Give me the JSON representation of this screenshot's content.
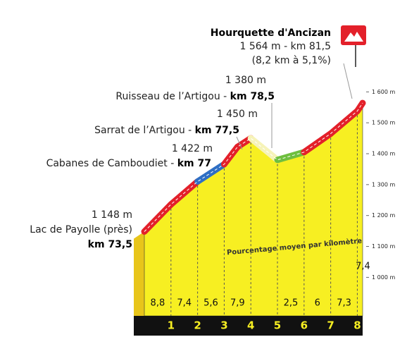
{
  "chart_data": {
    "type": "profile",
    "summit": {
      "name": "Hourquette d'Ancizan",
      "details": "1 564 m - km 81,5",
      "climb": "(8,2 km à 5,1%)"
    },
    "waypoints": [
      {
        "altitude": "1 380 m",
        "name": "Ruisseau de l’Artigou - ",
        "km": "km 78,5"
      },
      {
        "altitude": "1 450 m",
        "name": "Sarrat de l’Artigou - ",
        "km": "km 77,5"
      },
      {
        "altitude": "1 422 m",
        "name": "Cabanes de Camboudiet - ",
        "km": "km 77"
      },
      {
        "altitude": "1 148 m",
        "name": "Lac de Payolle (près)",
        "km": "km 73,5"
      }
    ],
    "x": [
      0,
      1,
      2,
      3,
      3.5,
      4,
      5,
      6,
      7,
      8,
      8.2
    ],
    "values": [
      1148,
      1236,
      1310,
      1366,
      1422,
      1450,
      1380,
      1405,
      1465,
      1538,
      1564
    ],
    "segment_colors": [
      "#e3202a",
      "#e3202a",
      "#2f6fc4",
      "#e3202a",
      "#e3202a",
      "#f6f3b8",
      "#6fbf3f",
      "#e3202a",
      "#e3202a",
      "#e3202a"
    ],
    "fill_color": "#f7ef22",
    "gradients": {
      "values": [
        8.8,
        7.4,
        5.6,
        7.9,
        null,
        2.5,
        6,
        7.3,
        7.4
      ],
      "value_labels": [
        "8,8",
        "7,4",
        "5,6",
        "7,9",
        null,
        "2,5",
        "6",
        "7,3",
        "7,4"
      ]
    },
    "gradient_note": "Pourcentage moyen par kilomètre",
    "xticks": [
      1,
      2,
      3,
      4,
      5,
      6,
      7,
      8
    ],
    "xlim": [
      0,
      8.2
    ],
    "ylim": [
      880,
      1660
    ],
    "yticks": [
      {
        "value": 1000,
        "label": "1 000 m"
      },
      {
        "value": 1100,
        "label": "1 100 m"
      },
      {
        "value": 1200,
        "label": "1 200 m"
      },
      {
        "value": 1300,
        "label": "1 300 m"
      },
      {
        "value": 1400,
        "label": "1 400 m"
      },
      {
        "value": 1500,
        "label": "1 500 m"
      },
      {
        "value": 1600,
        "label": "1 600 m"
      }
    ]
  }
}
